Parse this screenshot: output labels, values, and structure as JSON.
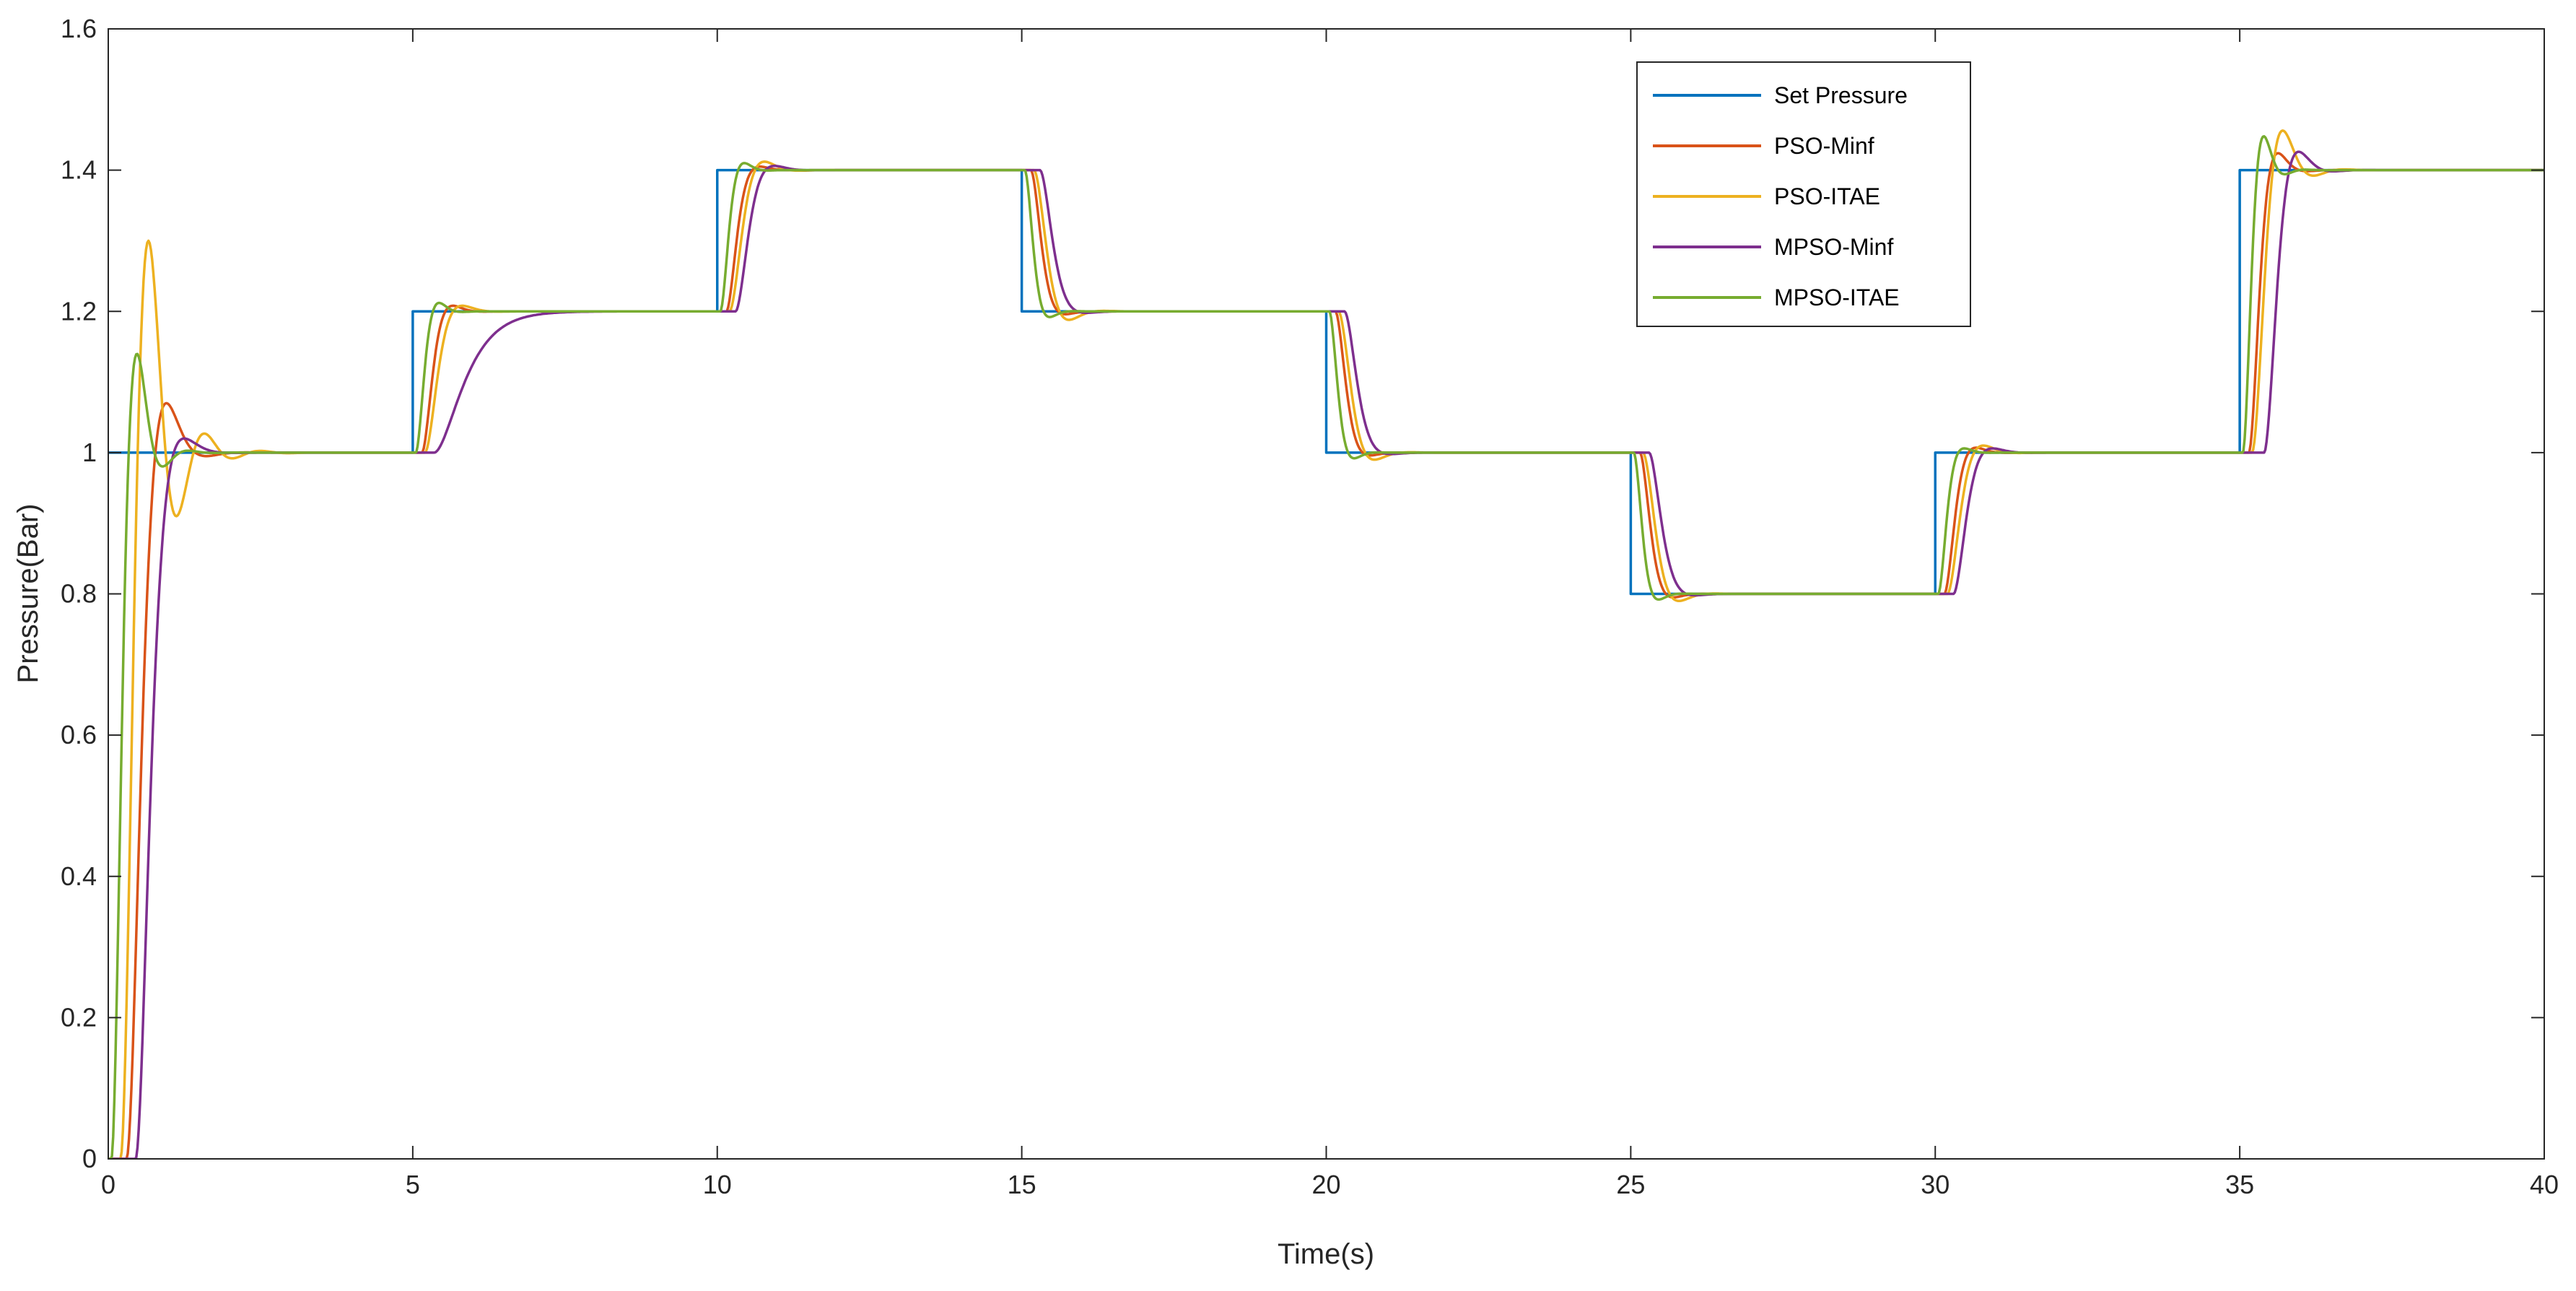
{
  "chart_data": {
    "type": "line",
    "xlabel": "Time(s)",
    "ylabel": "Pressure(Bar)",
    "xlim": [
      0,
      40
    ],
    "ylim": [
      0,
      1.6
    ],
    "xticks": [
      0,
      5,
      10,
      15,
      20,
      25,
      30,
      35,
      40
    ],
    "xtick_labels": [
      "0",
      "5",
      "10",
      "15",
      "20",
      "25",
      "30",
      "35",
      "40"
    ],
    "yticks": [
      0,
      0.2,
      0.4,
      0.6,
      0.8,
      1.0,
      1.2,
      1.4,
      1.6
    ],
    "ytick_labels": [
      "0",
      "0.2",
      "0.4",
      "0.6",
      "0.8",
      "1",
      "1.2",
      "1.4",
      "1.6"
    ],
    "grid": false,
    "legend_position": "top-right",
    "setpoints": [
      {
        "start": 0,
        "end": 5,
        "value": 1.0
      },
      {
        "start": 5,
        "end": 10,
        "value": 1.2
      },
      {
        "start": 10,
        "end": 15,
        "value": 1.4
      },
      {
        "start": 15,
        "end": 20,
        "value": 1.2
      },
      {
        "start": 20,
        "end": 25,
        "value": 1.0
      },
      {
        "start": 25,
        "end": 30,
        "value": 0.8
      },
      {
        "start": 30,
        "end": 35,
        "value": 1.0
      },
      {
        "start": 35,
        "end": 40,
        "value": 1.4
      }
    ],
    "series": [
      {
        "name": "Set Pressure",
        "color": "#0072BD",
        "step": true
      },
      {
        "name": "PSO-Minf",
        "color": "#D95319",
        "first_response": {
          "delay": 0.3,
          "tau": 0.35,
          "peak": 1.07,
          "t_peak": 1.7
        },
        "step_responses": [
          {
            "t": 5,
            "delay": 0.15,
            "tau": 0.25,
            "overshoot": 0.04
          },
          {
            "t": 10,
            "delay": 0.15,
            "tau": 0.25,
            "overshoot": 0.025
          },
          {
            "t": 15,
            "delay": 0.15,
            "tau": 0.25,
            "overshoot": 0.02
          },
          {
            "t": 20,
            "delay": 0.15,
            "tau": 0.25,
            "overshoot": 0.02
          },
          {
            "t": 25,
            "delay": 0.15,
            "tau": 0.25,
            "overshoot": 0.025
          },
          {
            "t": 30,
            "delay": 0.15,
            "tau": 0.25,
            "overshoot": 0.035
          },
          {
            "t": 35,
            "delay": 0.15,
            "tau": 0.25,
            "overshoot": 0.06
          }
        ]
      },
      {
        "name": "PSO-ITAE",
        "color": "#EDB120",
        "first_response": {
          "delay": 0.2,
          "tau": 0.3,
          "peak": 1.3,
          "t_peak": 1.7
        },
        "step_responses": [
          {
            "t": 5,
            "delay": 0.2,
            "tau": 0.3,
            "overshoot": 0.04
          },
          {
            "t": 10,
            "delay": 0.2,
            "tau": 0.3,
            "overshoot": 0.06
          },
          {
            "t": 15,
            "delay": 0.2,
            "tau": 0.3,
            "overshoot": 0.06
          },
          {
            "t": 20,
            "delay": 0.2,
            "tau": 0.3,
            "overshoot": 0.05
          },
          {
            "t": 25,
            "delay": 0.2,
            "tau": 0.3,
            "overshoot": 0.05
          },
          {
            "t": 30,
            "delay": 0.2,
            "tau": 0.3,
            "overshoot": 0.05
          },
          {
            "t": 35,
            "delay": 0.2,
            "tau": 0.3,
            "overshoot": 0.14
          }
        ]
      },
      {
        "name": "MPSO-Minf",
        "color": "#7E2F8E",
        "first_response": {
          "delay": 0.45,
          "tau": 0.35,
          "peak": 1.02,
          "t_peak": 1.8
        },
        "step_responses": [
          {
            "t": 5,
            "delay": 0.35,
            "tau": 0.3,
            "overshoot": 0.0
          },
          {
            "t": 10,
            "delay": 0.3,
            "tau": 0.3,
            "overshoot": 0.03
          },
          {
            "t": 15,
            "delay": 0.3,
            "tau": 0.3,
            "overshoot": 0.01
          },
          {
            "t": 20,
            "delay": 0.3,
            "tau": 0.3,
            "overshoot": 0.01
          },
          {
            "t": 25,
            "delay": 0.3,
            "tau": 0.3,
            "overshoot": 0.01
          },
          {
            "t": 30,
            "delay": 0.3,
            "tau": 0.3,
            "overshoot": 0.03
          },
          {
            "t": 35,
            "delay": 0.4,
            "tau": 0.3,
            "overshoot": 0.065
          }
        ]
      },
      {
        "name": "MPSO-ITAE",
        "color": "#77AC30",
        "first_response": {
          "delay": 0.05,
          "tau": 0.25,
          "peak": 1.14,
          "t_peak": 1.1
        },
        "step_responses": [
          {
            "t": 5,
            "delay": 0.05,
            "tau": 0.2,
            "overshoot": 0.06
          },
          {
            "t": 10,
            "delay": 0.05,
            "tau": 0.2,
            "overshoot": 0.05
          },
          {
            "t": 15,
            "delay": 0.05,
            "tau": 0.2,
            "overshoot": 0.04
          },
          {
            "t": 20,
            "delay": 0.05,
            "tau": 0.2,
            "overshoot": 0.04
          },
          {
            "t": 25,
            "delay": 0.05,
            "tau": 0.2,
            "overshoot": 0.04
          },
          {
            "t": 30,
            "delay": 0.05,
            "tau": 0.2,
            "overshoot": 0.03
          },
          {
            "t": 35,
            "delay": 0.05,
            "tau": 0.2,
            "overshoot": 0.12
          }
        ]
      }
    ]
  }
}
